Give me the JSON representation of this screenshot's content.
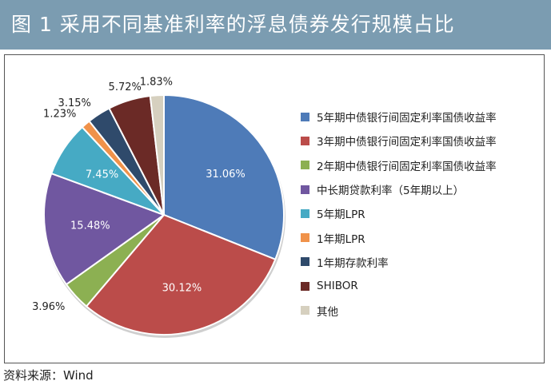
{
  "header": {
    "title": "图 1   采用不同基准利率的浮息债券发行规模占比"
  },
  "source": "资料来源：Wind",
  "chart_data": {
    "type": "pie",
    "title": "采用不同基准利率的浮息债券发行规模占比",
    "legend_position": "right",
    "start_angle_deg": 0,
    "direction": "clockwise",
    "slices": [
      {
        "label": "5年期中债银行间固定利率国债收益率",
        "value": 31.06,
        "display": "31.06%",
        "color": "#4e7bb8",
        "label_pos": "inside"
      },
      {
        "label": "3年期中债银行间固定利率国债收益率",
        "value": 30.12,
        "display": "30.12%",
        "color": "#bb4c4a",
        "label_pos": "inside"
      },
      {
        "label": "2年期中债银行间固定利率国债收益率",
        "value": 3.96,
        "display": "3.96%",
        "color": "#8cb052",
        "label_pos": "outside"
      },
      {
        "label": "中长期贷款利率（5年期以上）",
        "value": 15.48,
        "display": "15.48%",
        "color": "#7057a0",
        "label_pos": "inside"
      },
      {
        "label": "5年期LPR",
        "value": 7.45,
        "display": "7.45%",
        "color": "#46aac4",
        "label_pos": "inside"
      },
      {
        "label": "1年期LPR",
        "value": 1.23,
        "display": "1.23%",
        "color": "#f0924a",
        "label_pos": "outside"
      },
      {
        "label": "1年期存款利率",
        "value": 3.15,
        "display": "3.15%",
        "color": "#2f4a6b",
        "label_pos": "outside"
      },
      {
        "label": "SHIBOR",
        "value": 5.72,
        "display": "5.72%",
        "color": "#6b2a26",
        "label_pos": "outside"
      },
      {
        "label": "其他",
        "value": 1.83,
        "display": "1.83%",
        "color": "#d6d0bf",
        "label_pos": "outside"
      }
    ]
  }
}
